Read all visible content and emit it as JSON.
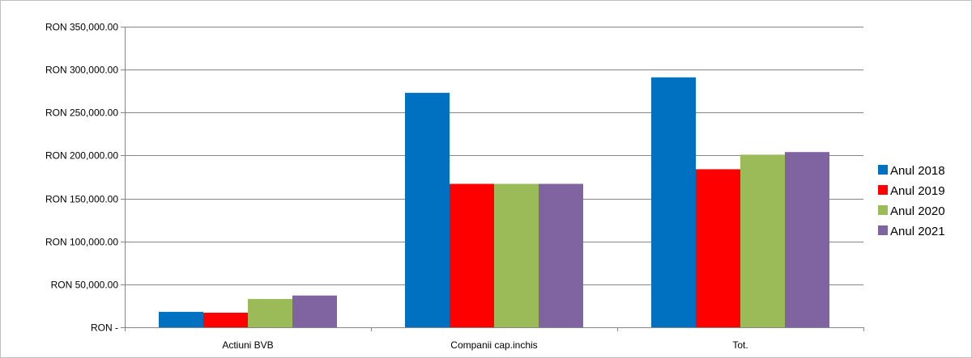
{
  "chart_data": {
    "type": "bar",
    "title": "",
    "xlabel": "",
    "ylabel": "",
    "categories": [
      "Actiuni BVB",
      "Companii cap.inchis",
      "Tot."
    ],
    "series": [
      {
        "name": "Anul 2018",
        "color": "#0070C0",
        "values": [
          18000,
          273000,
          291000
        ]
      },
      {
        "name": "Anul 2019",
        "color": "#FF0000",
        "values": [
          17000,
          167000,
          184000
        ]
      },
      {
        "name": "Anul 2020",
        "color": "#9BBB59",
        "values": [
          33000,
          167000,
          201000
        ]
      },
      {
        "name": "Anul 2021",
        "color": "#8064A2",
        "values": [
          37000,
          167000,
          204000
        ]
      }
    ],
    "ylim": [
      0,
      350000
    ],
    "yticks": [
      0,
      50000,
      100000,
      150000,
      200000,
      250000,
      300000,
      350000
    ],
    "ytick_labels": [
      "RON -",
      "RON 50,000.00",
      "RON 100,000.00",
      "RON 150,000.00",
      "RON 200,000.00",
      "RON 250,000.00",
      "RON 300,000.00",
      "RON 350,000.00"
    ],
    "grid": true,
    "legend_position": "right"
  }
}
